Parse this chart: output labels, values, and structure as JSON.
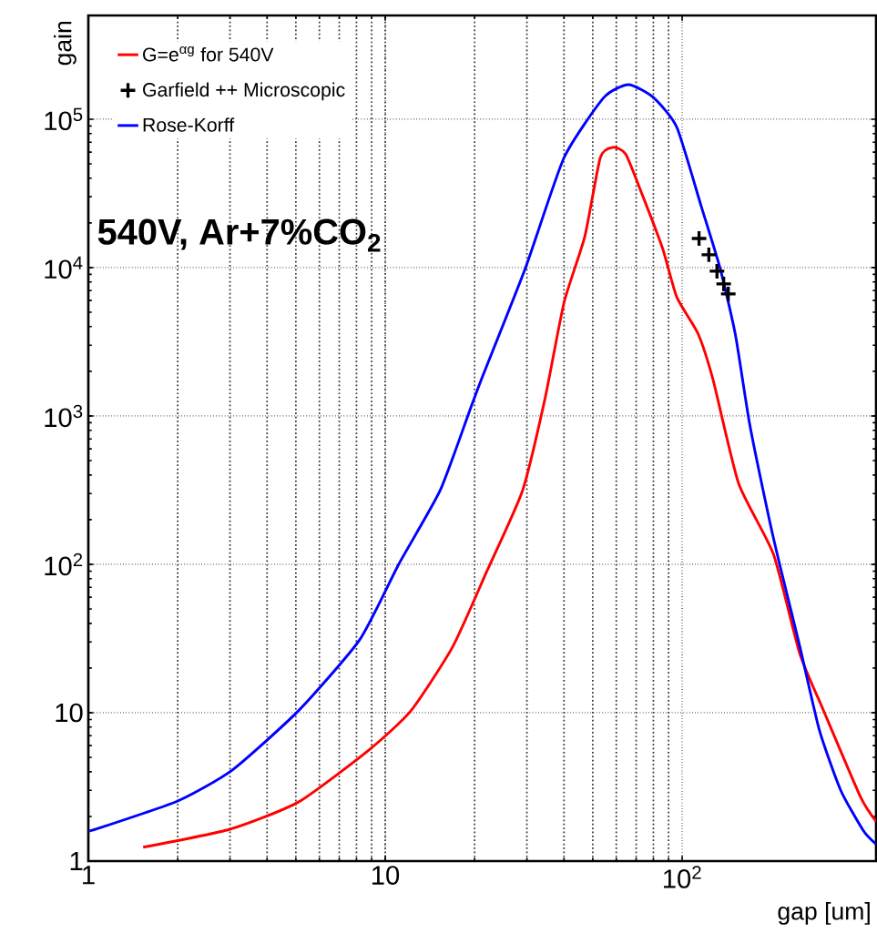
{
  "chart_data": {
    "type": "line",
    "xlabel": "gap [um]",
    "ylabel": "gain",
    "log": "xy",
    "grid": true,
    "legend": "top left",
    "xlim": [
      1,
      450
    ],
    "ylim": [
      1,
      500000
    ],
    "xticks": [
      1,
      10,
      {
        "value": 100,
        "label": "10$^{2}$"
      }
    ],
    "yticks": [
      1,
      10,
      {
        "value": 100,
        "label": "10$^{2}$"
      },
      {
        "value": 1000,
        "label": "10$^{3}$"
      },
      {
        "value": 10000,
        "label": "10$^{4}$"
      },
      {
        "value": 100000,
        "label": "10$^{5}$"
      }
    ],
    "annotations": [
      "540V, Ar+7%CO$_{2}$"
    ],
    "series": [
      {
        "name": "G=e$^{αg}$ for 540V",
        "color": "#ff0000",
        "x": [
          1.53,
          3.0,
          5.1,
          8.8,
          12.2,
          16.9,
          22,
          29,
          34.5,
          40,
          47,
          53,
          58.5,
          64.6,
          74,
          86,
          96,
          113,
          127,
          155,
          203,
          249,
          299,
          399,
          450
        ],
        "values": [
          1.24,
          1.64,
          2.5,
          5.6,
          10.3,
          28,
          90,
          314,
          1300,
          5800,
          16200,
          55000,
          64600,
          58000,
          29700,
          13400,
          6300,
          3600,
          1760,
          350,
          117,
          25,
          10.4,
          2.7,
          1.85
        ]
      },
      {
        "name": "Garfield ++ Microscopic",
        "type": "scatter",
        "marker": "cross",
        "color": "#000000",
        "x": [
          114,
          123,
          131,
          138,
          143
        ],
        "values": [
          15700,
          12200,
          9450,
          7760,
          6640
        ]
      },
      {
        "name": "Rose-Korff",
        "color": "#0000ff",
        "x": [
          1.0,
          1.06,
          2.0,
          3.05,
          5.1,
          8.2,
          11.1,
          15.3,
          19.3,
          21.3,
          29.7,
          40,
          54.5,
          66,
          80,
          96,
          116,
          134,
          151,
          169,
          197,
          213,
          249,
          290,
          342,
          408,
          450
        ],
        "values": [
          1.6,
          1.64,
          2.54,
          4.1,
          10.3,
          31,
          100,
          314,
          1100,
          1860,
          10000,
          55000,
          140000,
          171000,
          140000,
          88000,
          25800,
          10000,
          3560,
          870,
          197,
          100,
          28,
          7.6,
          3.0,
          1.6,
          1.3
        ]
      }
    ]
  }
}
